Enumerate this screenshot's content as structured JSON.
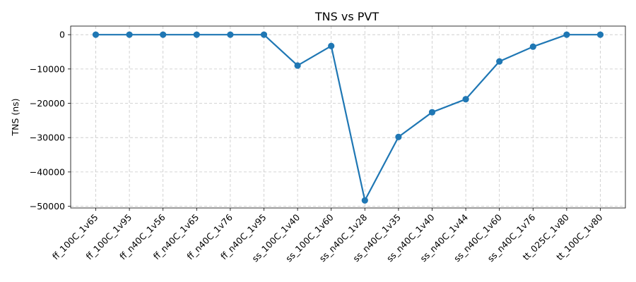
{
  "chart_data": {
    "type": "line",
    "title": "TNS vs PVT",
    "xlabel": "",
    "ylabel": "TNS (ns)",
    "categories": [
      "ff_100C_1v65",
      "ff_100C_1v95",
      "ff_n40C_1v56",
      "ff_n40C_1v65",
      "ff_n40C_1v76",
      "ff_n40C_1v95",
      "ss_100C_1v40",
      "ss_100C_1v60",
      "ss_n40C_1v28",
      "ss_n40C_1v35",
      "ss_n40C_1v40",
      "ss_n40C_1v44",
      "ss_n40C_1v60",
      "ss_n40C_1v76",
      "tt_025C_1v80",
      "tt_100C_1v80"
    ],
    "series": [
      {
        "name": "TNS",
        "color": "#1f77b4",
        "values": [
          0,
          0,
          0,
          0,
          0,
          0,
          -9000,
          -3300,
          -48300,
          -29800,
          -22600,
          -18800,
          -7800,
          -3500,
          0,
          0
        ]
      }
    ],
    "ylim": [
      -50500,
      2500
    ],
    "yticks": [
      0,
      -10000,
      -20000,
      -30000,
      -40000,
      -50000
    ],
    "ytick_labels": [
      "0",
      "−10000",
      "−20000",
      "−30000",
      "−40000",
      "−50000"
    ],
    "grid": true
  }
}
